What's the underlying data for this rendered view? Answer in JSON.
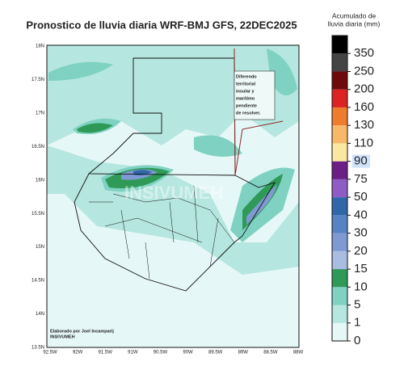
{
  "map": {
    "title": "Pronostico de lluvia diaria WRF-BMJ GFS,  22DEC2025",
    "colorbar_title": [
      "Acumulado de",
      "lluvia diaria (mm)"
    ],
    "colorbar": [
      {
        "label": "0",
        "color": "#e6f7f7"
      },
      {
        "label": "1",
        "color": "#b5e6df"
      },
      {
        "label": "5",
        "color": "#7fd2c2"
      },
      {
        "label": "10",
        "color": "#2f9a58"
      },
      {
        "label": "15",
        "color": "#a9bce2"
      },
      {
        "label": "20",
        "color": "#7f9ad2"
      },
      {
        "label": "30",
        "color": "#5683c4"
      },
      {
        "label": "40",
        "color": "#3067a8"
      },
      {
        "label": "50",
        "color": "#8e5cc4"
      },
      {
        "label": "75",
        "color": "#6a1e86"
      },
      {
        "label": "90",
        "color": "#fbe7a0"
      },
      {
        "label": "110",
        "color": "#f8b868"
      },
      {
        "label": "130",
        "color": "#ef7c2c"
      },
      {
        "label": "160",
        "color": "#dd2222"
      },
      {
        "label": "200",
        "color": "#6e0a0a"
      },
      {
        "label": "250",
        "color": "#444444"
      },
      {
        "label": "350",
        "color": "#000000"
      }
    ],
    "lat_ticks": [
      "18N",
      "17.5N",
      "17N",
      "16.5N",
      "16N",
      "15.5N",
      "15N",
      "14.5N",
      "14N",
      "13.5N"
    ],
    "lon_ticks": [
      "92.5W",
      "92W",
      "91.5W",
      "91W",
      "90.5W",
      "90W",
      "89.5W",
      "89W",
      "88.5W",
      "88W"
    ],
    "annotation": [
      "Diferendo",
      "territorial",
      "insular y",
      "marítimo",
      "pendiente",
      "de resolver."
    ],
    "credit": [
      "Elaborado  por Joel Incamparij",
      "INSIVUMEH"
    ],
    "watermark": "INSIVUMEH"
  }
}
